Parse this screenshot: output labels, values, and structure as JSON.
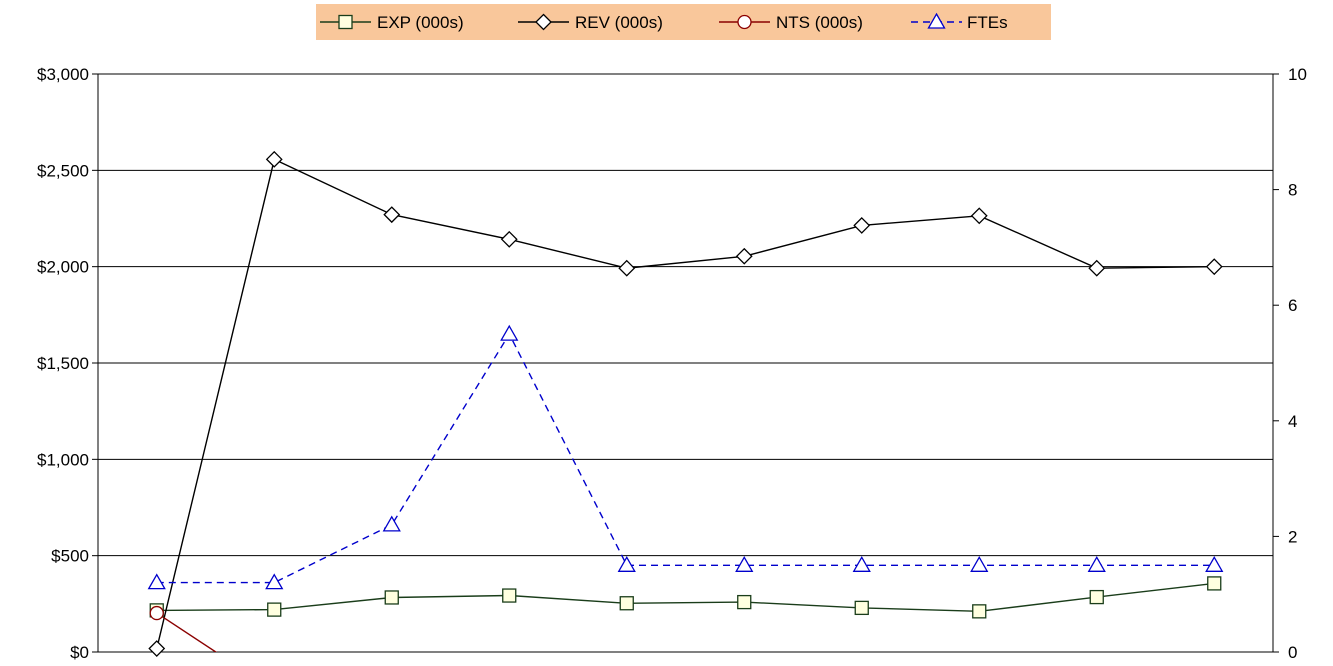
{
  "chart_data": {
    "type": "line",
    "title": "",
    "xlabel": "",
    "ylabel": "",
    "y2label": "",
    "grid": true,
    "legend_position": "top",
    "legend_background": "#f9c79b",
    "y_left": {
      "ylim": [
        0,
        3000
      ],
      "ticks": [
        0,
        500,
        1000,
        1500,
        2000,
        2500,
        3000
      ],
      "tick_labels": [
        "$0",
        "$500",
        "$1,000",
        "$1,500",
        "$2,000",
        "$2,500",
        "$3,000"
      ]
    },
    "y_right": {
      "ylim": [
        0,
        10
      ],
      "ticks": [
        0,
        2,
        4,
        6,
        8,
        10
      ],
      "tick_labels": [
        "0",
        "2",
        "4",
        "6",
        "8",
        "10"
      ]
    },
    "x_count": 10,
    "series": [
      {
        "name": "EXP (000s)",
        "axis": "left",
        "marker": "square",
        "line_color": "#1a3d1a",
        "marker_fill": "#ffffe0",
        "dash": false,
        "values": [
          216,
          220,
          283,
          293,
          253,
          259,
          229,
          211,
          285,
          356
        ]
      },
      {
        "name": "REV (000s)",
        "axis": "left",
        "marker": "diamond",
        "line_color": "#000000",
        "marker_fill": "#ffffff",
        "dash": false,
        "values": [
          18,
          2557,
          2270,
          2142,
          1992,
          2054,
          2214,
          2264,
          1992,
          2000
        ]
      },
      {
        "name": "NTS (000s)",
        "axis": "left",
        "marker": "circle",
        "line_color": "#8b0000",
        "marker_fill": "#ffffff",
        "dash": false,
        "values": [
          202,
          -200,
          null,
          null,
          null,
          null,
          null,
          null,
          null,
          null
        ]
      },
      {
        "name": "FTEs",
        "axis": "right",
        "marker": "triangle",
        "line_color": "#0000cc",
        "marker_fill": "#ffffff",
        "dash": true,
        "values": [
          1.2,
          1.2,
          2.2,
          5.5,
          1.5,
          1.5,
          1.5,
          1.5,
          1.5,
          1.5
        ]
      }
    ]
  }
}
